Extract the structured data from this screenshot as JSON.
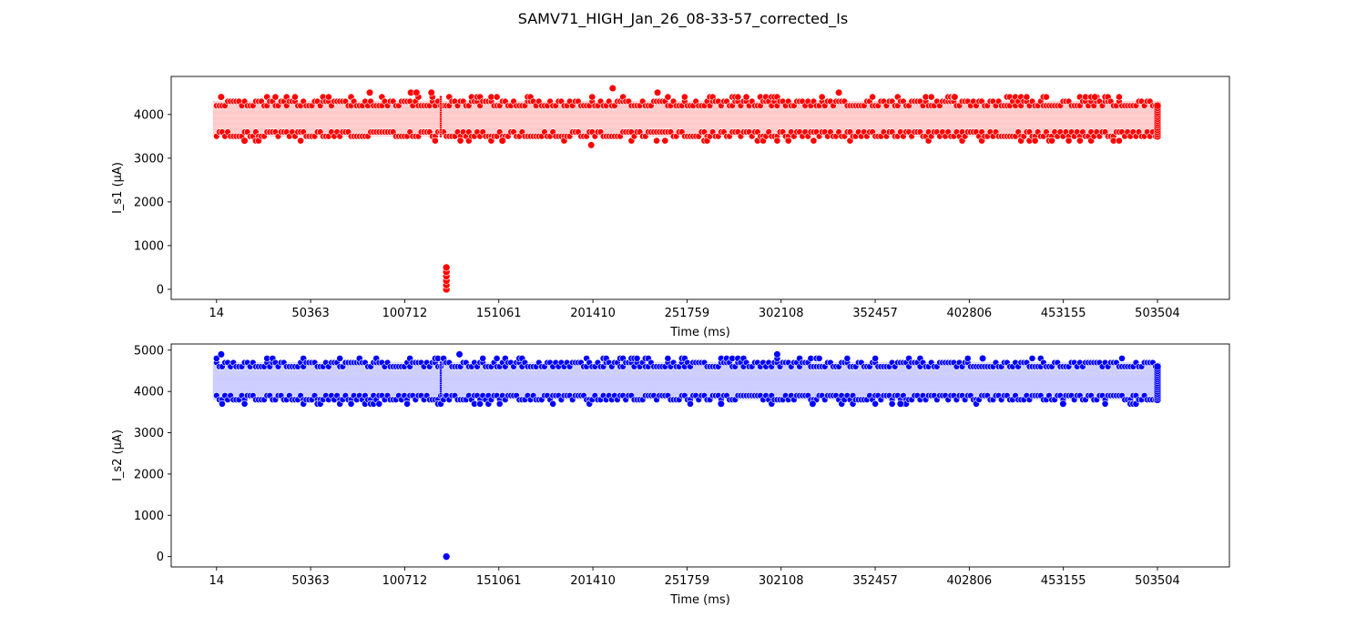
{
  "figure": {
    "title": "SAMV71_HIGH_Jan_26_08-33-57_corrected_Is"
  },
  "chart_data": [
    {
      "type": "scatter",
      "title": "",
      "xlabel": "Time (ms)",
      "ylabel": "I_s1 (µA)",
      "x_ticks": [
        14,
        50363,
        100712,
        151061,
        201410,
        251759,
        302108,
        352457,
        402806,
        453155,
        503504
      ],
      "y_ticks": [
        0,
        1000,
        2000,
        3000,
        4000
      ],
      "xlim": [
        -24245,
        542000
      ],
      "ylim": [
        -230,
        4870
      ],
      "grid": false,
      "color": "#ff0000",
      "x_range": [
        14,
        503504
      ],
      "band": {
        "low": 3500,
        "high": 4300,
        "typical": 3900,
        "note_values": "dense band of samples"
      },
      "outliers": [
        {
          "x": 2500,
          "y": 4400
        },
        {
          "x": 82000,
          "y": 4500
        },
        {
          "x": 104000,
          "y": 4500
        },
        {
          "x": 107000,
          "y": 4500
        },
        {
          "x": 115000,
          "y": 4500
        },
        {
          "x": 212000,
          "y": 4600
        },
        {
          "x": 236000,
          "y": 4500
        },
        {
          "x": 333000,
          "y": 4500
        },
        {
          "x": 200500,
          "y": 3300
        },
        {
          "x": 15000,
          "y": 3400
        },
        {
          "x": 153000,
          "y": 3400
        },
        {
          "x": 395000,
          "y": 4400
        },
        {
          "x": 470000,
          "y": 4400
        }
      ],
      "dropout": {
        "x": 123000,
        "values": [
          0,
          100,
          200,
          300,
          400,
          500
        ]
      },
      "vertical_sweep": {
        "x": 120000,
        "min": 3500,
        "max": 4400
      },
      "end_sweep": {
        "x": 503504,
        "min": 3500,
        "max": 4200
      }
    },
    {
      "type": "scatter",
      "title": "",
      "xlabel": "Time (ms)",
      "ylabel": "I_s2 (µA)",
      "x_ticks": [
        14,
        50363,
        100712,
        151061,
        201410,
        251759,
        302108,
        352457,
        402806,
        453155,
        503504
      ],
      "y_ticks": [
        0,
        1000,
        2000,
        3000,
        4000,
        5000
      ],
      "xlim": [
        -24245,
        542000
      ],
      "ylim": [
        -250,
        5150
      ],
      "grid": false,
      "color": "#0000ff",
      "x_range": [
        14,
        503504
      ],
      "band": {
        "low": 3800,
        "high": 4700,
        "typical": 4200,
        "note_values": "dense band of samples"
      },
      "outliers": [
        {
          "x": 2500,
          "y": 4900
        },
        {
          "x": 130000,
          "y": 4900
        },
        {
          "x": 300000,
          "y": 4900
        },
        {
          "x": 410000,
          "y": 4800
        },
        {
          "x": 270000,
          "y": 3700
        },
        {
          "x": 319000,
          "y": 3700
        },
        {
          "x": 366000,
          "y": 3700
        },
        {
          "x": 453000,
          "y": 3700
        }
      ],
      "dropout": {
        "x": 123000,
        "values": [
          0
        ]
      },
      "vertical_sweep": {
        "x": 120000,
        "min": 3900,
        "max": 4700
      },
      "end_sweep": {
        "x": 503504,
        "min": 3800,
        "max": 4600
      }
    }
  ]
}
